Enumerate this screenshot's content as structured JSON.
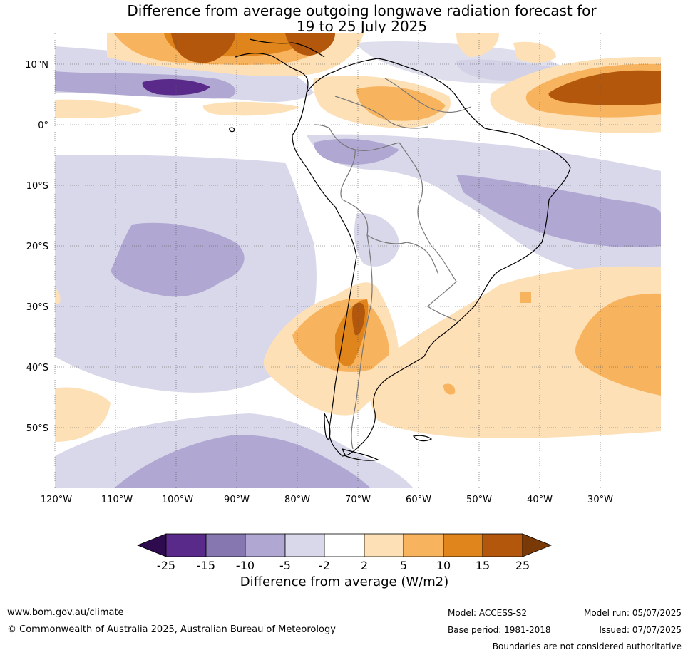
{
  "title": {
    "line1": "Difference from average outgoing longwave radiation forecast for",
    "line2": "19 to 25 July 2025"
  },
  "map": {
    "latitude_labels": [
      "10°N",
      "0°",
      "10°S",
      "20°S",
      "30°S",
      "40°S",
      "50°S"
    ],
    "longitude_labels": [
      "120°W",
      "110°W",
      "100°W",
      "90°W",
      "80°W",
      "70°W",
      "60°W",
      "50°W",
      "40°W",
      "30°W"
    ]
  },
  "colorbar": {
    "ticks": [
      "-25",
      "-15",
      "-10",
      "-5",
      "-2",
      "2",
      "5",
      "10",
      "15",
      "25"
    ],
    "colors": [
      "#2d0b4e",
      "#5a2a8a",
      "#8677b0",
      "#b0a8d2",
      "#d8d8ea",
      "#ffffff",
      "#fde0b6",
      "#f8b35e",
      "#e0841c",
      "#b3570d",
      "#7a3a08"
    ],
    "label": "Difference from average (W/m2)"
  },
  "footer": {
    "website": "www.bom.gov.au/climate",
    "copyright": "© Commonwealth of Australia 2025, Australian Bureau of Meteorology",
    "model": "Model: ACCESS-S2",
    "base_period": "Base period: 1981-2018",
    "model_run": "Model run: 05/07/2025",
    "issued": "Issued: 07/07/2025",
    "disclaimer": "Boundaries are not considered authoritative"
  }
}
